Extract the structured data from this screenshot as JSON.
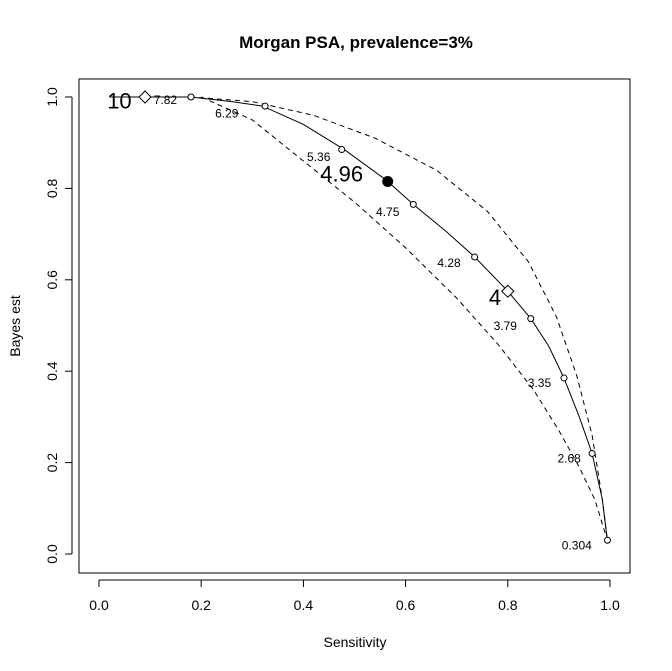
{
  "chart_data": {
    "type": "line",
    "title": "Morgan PSA, prevalence=3%",
    "xlabel": "Sensitivity",
    "ylabel": "Bayes est",
    "xlim": [
      0,
      1
    ],
    "ylim": [
      0,
      1
    ],
    "x_ticks": [
      "0.0",
      "0.2",
      "0.4",
      "0.6",
      "0.8",
      "1.0"
    ],
    "y_ticks": [
      "0.0",
      "0.2",
      "0.4",
      "0.6",
      "0.8",
      "1.0"
    ],
    "grid": false,
    "series": [
      {
        "style": "solid",
        "x": [
          0.02,
          0.09,
          0.18,
          0.26,
          0.32,
          0.4,
          0.48,
          0.56,
          0.615,
          0.68,
          0.735,
          0.8,
          0.845,
          0.88,
          0.91,
          0.94,
          0.965,
          0.985,
          0.995
        ],
        "y": [
          1.0,
          1.0,
          1.0,
          0.99,
          0.98,
          0.94,
          0.885,
          0.82,
          0.765,
          0.705,
          0.65,
          0.575,
          0.515,
          0.455,
          0.385,
          0.3,
          0.22,
          0.12,
          0.03
        ]
      },
      {
        "style": "dashed",
        "x": [
          0.09,
          0.18,
          0.3,
          0.42,
          0.54,
          0.66,
          0.76,
          0.84,
          0.895,
          0.935,
          0.965,
          0.985,
          0.995
        ],
        "y": [
          1.0,
          1.0,
          0.99,
          0.96,
          0.91,
          0.84,
          0.75,
          0.64,
          0.52,
          0.39,
          0.26,
          0.12,
          0.03
        ]
      },
      {
        "style": "dashed",
        "x": [
          0.2,
          0.3,
          0.4,
          0.5,
          0.6,
          0.7,
          0.78,
          0.85,
          0.9,
          0.94,
          0.97,
          0.995
        ],
        "y": [
          1.0,
          0.95,
          0.86,
          0.77,
          0.67,
          0.56,
          0.46,
          0.36,
          0.27,
          0.19,
          0.12,
          0.03
        ]
      }
    ],
    "points": [
      {
        "x": 0.18,
        "y": 1.0,
        "label": "7.82",
        "lx": 0.13,
        "ly": 0.985
      },
      {
        "x": 0.325,
        "y": 0.98,
        "label": "6.29",
        "lx": 0.25,
        "ly": 0.955
      },
      {
        "x": 0.475,
        "y": 0.885,
        "label": "5.36",
        "lx": 0.43,
        "ly": 0.86
      },
      {
        "x": 0.615,
        "y": 0.765,
        "label": "4.75",
        "lx": 0.565,
        "ly": 0.74
      },
      {
        "x": 0.735,
        "y": 0.65,
        "label": "4.28",
        "lx": 0.685,
        "ly": 0.628
      },
      {
        "x": 0.845,
        "y": 0.515,
        "label": "3.79",
        "lx": 0.795,
        "ly": 0.49
      },
      {
        "x": 0.91,
        "y": 0.385,
        "label": "3.35",
        "lx": 0.862,
        "ly": 0.365
      },
      {
        "x": 0.965,
        "y": 0.22,
        "label": "2.68",
        "lx": 0.92,
        "ly": 0.2
      },
      {
        "x": 0.995,
        "y": 0.03,
        "label": "0.304",
        "lx": 0.935,
        "ly": 0.01
      }
    ],
    "markers": [
      {
        "shape": "diamond",
        "x": 0.09,
        "y": 1.0,
        "label": "10",
        "lx": 0.04,
        "ly": 0.975
      },
      {
        "shape": "filled-circle",
        "x": 0.565,
        "y": 0.815,
        "label": "4.96",
        "lx": 0.475,
        "ly": 0.815
      },
      {
        "shape": "diamond",
        "x": 0.8,
        "y": 0.575,
        "label": "4",
        "lx": 0.775,
        "ly": 0.545
      }
    ]
  }
}
